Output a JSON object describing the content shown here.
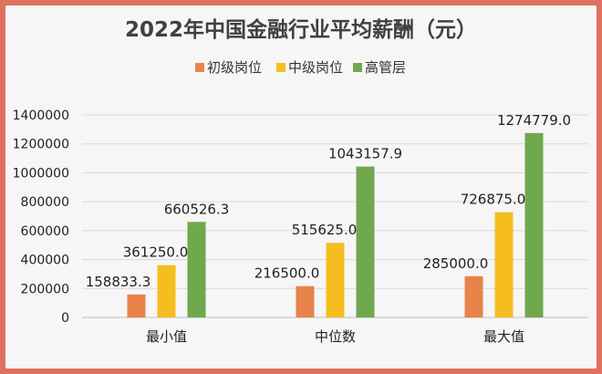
{
  "chart_data": {
    "type": "bar",
    "title": "2022年中国金融行业平均薪酬（元）",
    "categories": [
      "最小值",
      "中位数",
      "最大值"
    ],
    "series": [
      {
        "name": "初级岗位",
        "color": "#e8834a",
        "values": [
          158833.3,
          216500.0,
          285000.0
        ],
        "labels": [
          "158833.3",
          "216500.0",
          "285000.0"
        ]
      },
      {
        "name": "中级岗位",
        "color": "#f5bd1f",
        "values": [
          361250.0,
          515625.0,
          726875.0
        ],
        "labels": [
          "361250.0",
          "515625.0",
          "726875.0"
        ]
      },
      {
        "name": "高管层",
        "color": "#70a84e",
        "values": [
          660526.3,
          1043157.9,
          1274779.0
        ],
        "labels": [
          "660526.3",
          "1043157.9",
          "1274779.0"
        ]
      }
    ],
    "ylim": [
      0,
      1400000
    ],
    "yticks": [
      0,
      200000,
      400000,
      600000,
      800000,
      1000000,
      1200000,
      1400000
    ],
    "grid": true,
    "legend": "top-center"
  }
}
